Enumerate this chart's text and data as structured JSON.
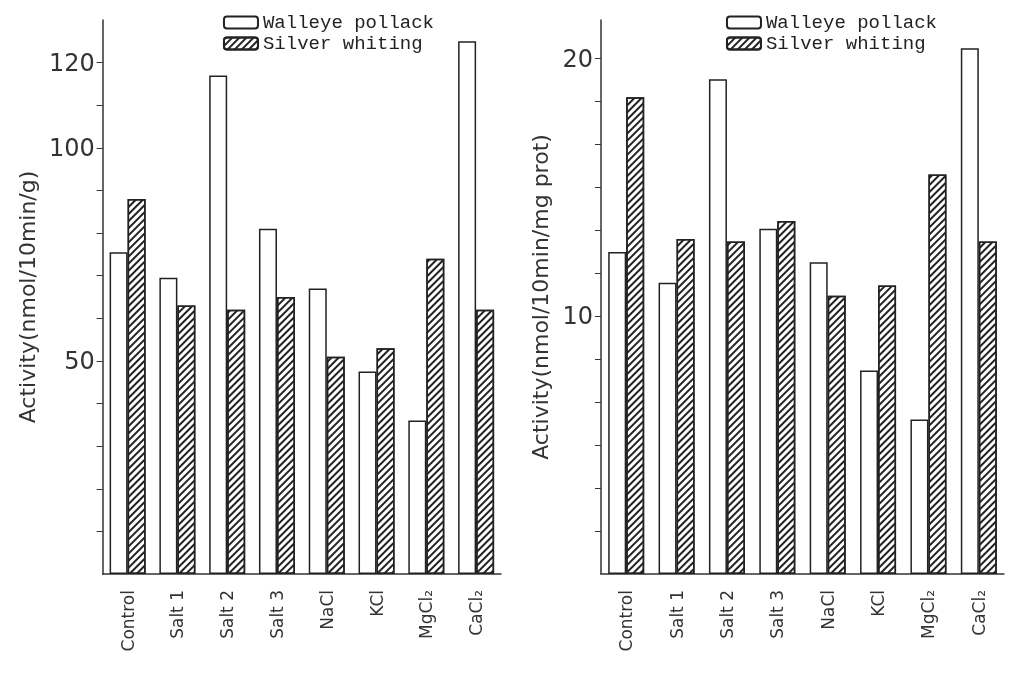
{
  "chart_data": [
    {
      "type": "bar",
      "ylabel": "Activity(nmol/10min/g)",
      "categories": [
        "Control",
        "Salt 1",
        "Salt 2",
        "Salt 3",
        "NaCl",
        "KCl",
        "MgCl₂",
        "CaCl₂"
      ],
      "series": [
        {
          "name": "Walleye pollack",
          "color": "#ffffff",
          "values": [
            75.5,
            69.5,
            117,
            81,
            67,
            47.5,
            36,
            125
          ]
        },
        {
          "name": "Silver whiting",
          "color": "#222222",
          "values": [
            88,
            63,
            62,
            65,
            51,
            53,
            74,
            62
          ]
        }
      ],
      "ylim": [
        0,
        130
      ],
      "yticks": [
        {
          "value": 10,
          "label": null
        },
        {
          "value": 20,
          "label": null
        },
        {
          "value": 30,
          "label": null
        },
        {
          "value": 40,
          "label": null
        },
        50,
        {
          "value": 60,
          "label": null
        },
        {
          "value": 70,
          "label": null
        },
        {
          "value": 80,
          "label": null
        },
        {
          "value": 90,
          "label": null
        },
        100,
        {
          "value": 110,
          "label": null
        },
        120
      ],
      "grid": false,
      "legend": "top right"
    },
    {
      "type": "bar",
      "ylabel": "Activity(nmol/10min/mg prot)",
      "categories": [
        "Control",
        "Salt 1",
        "Salt 2",
        "Salt 3",
        "NaCl",
        "KCl",
        "MgCl₂",
        "CaCl₂"
      ],
      "series": [
        {
          "name": "Walleye pollack",
          "color": "#ffffff",
          "values": [
            12.5,
            11.3,
            19.2,
            13.4,
            12.1,
            7.9,
            6.0,
            20.4
          ]
        },
        {
          "name": "Silver whiting",
          "color": "#222222",
          "values": [
            18.5,
            13.0,
            12.9,
            13.7,
            10.8,
            11.2,
            15.5,
            12.9
          ]
        }
      ],
      "ylim": [
        0,
        21.5
      ],
      "yticks": [
        {
          "value": 1.667,
          "label": null
        },
        {
          "value": 3.333,
          "label": null
        },
        {
          "value": 5,
          "label": null
        },
        {
          "value": 6.667,
          "label": null
        },
        {
          "value": 8.333,
          "label": null
        },
        10,
        {
          "value": 11.667,
          "label": null
        },
        {
          "value": 13.333,
          "label": null
        },
        {
          "value": 15,
          "label": null
        },
        {
          "value": 16.667,
          "label": null
        },
        {
          "value": 18.333,
          "label": null
        },
        20
      ],
      "grid": false,
      "legend": "top right"
    }
  ]
}
